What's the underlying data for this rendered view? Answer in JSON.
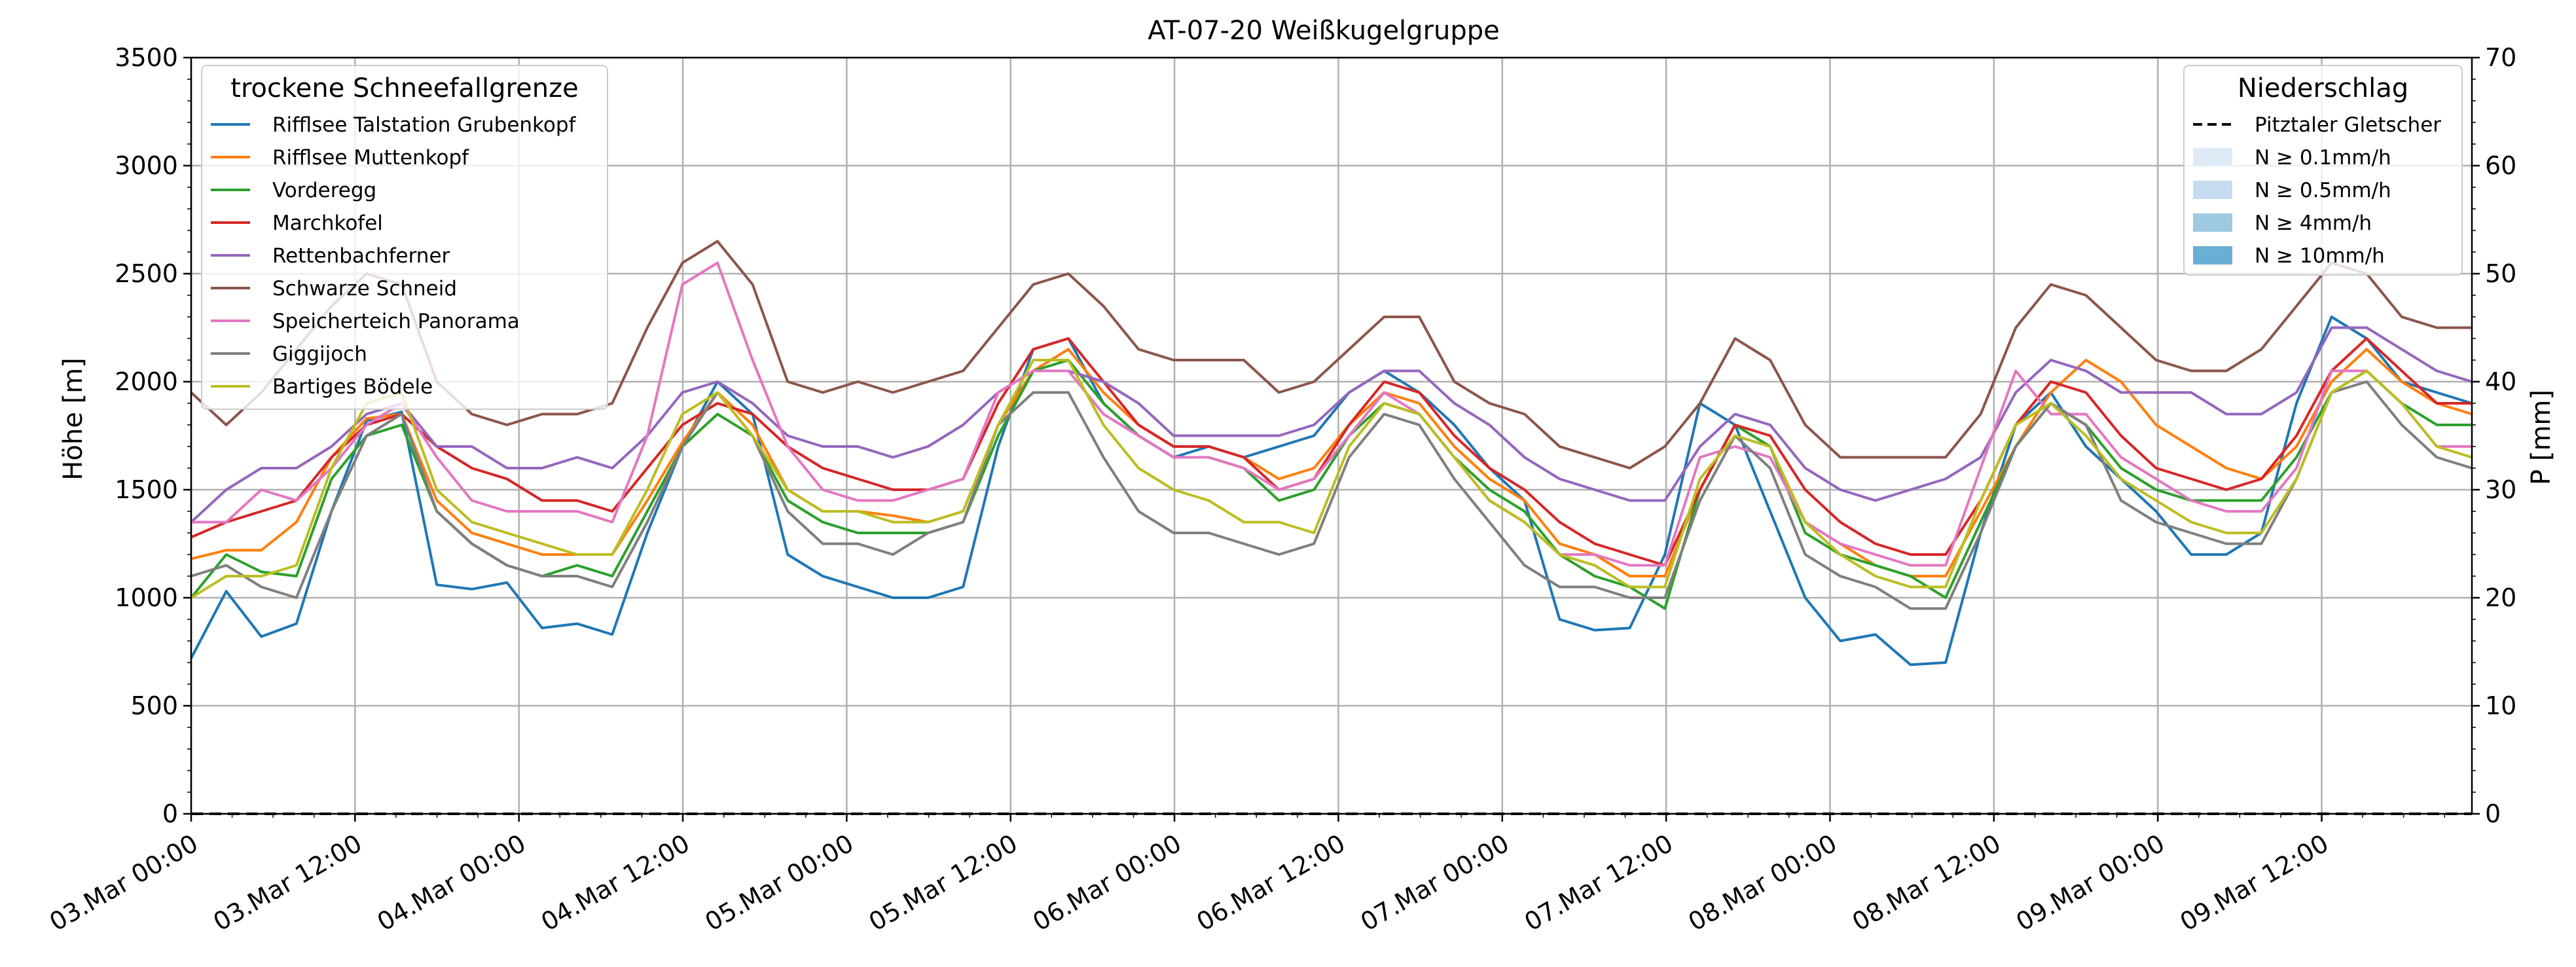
{
  "chart_data": {
    "type": "line",
    "title": "AT-07-20 Weißkugelgruppe",
    "ylabel": "Höhe [m]",
    "y2label": "P [mm]",
    "ylim": [
      0,
      3500
    ],
    "y2lim": [
      0,
      70
    ],
    "yticks": [
      0,
      500,
      1000,
      1500,
      2000,
      2500,
      3000,
      3500
    ],
    "y2ticks": [
      0,
      10,
      20,
      30,
      40,
      50,
      60,
      70
    ],
    "xrange_hours": [
      0,
      167
    ],
    "x_start": "03.Mar 00:00",
    "x_step_hours": 3,
    "xticks": [
      {
        "hour": 0,
        "label": "03.Mar 00:00"
      },
      {
        "hour": 12,
        "label": "03.Mar 12:00"
      },
      {
        "hour": 24,
        "label": "04.Mar 00:00"
      },
      {
        "hour": 36,
        "label": "04.Mar 12:00"
      },
      {
        "hour": 48,
        "label": "05.Mar 00:00"
      },
      {
        "hour": 60,
        "label": "05.Mar 12:00"
      },
      {
        "hour": 72,
        "label": "06.Mar 00:00"
      },
      {
        "hour": 84,
        "label": "06.Mar 12:00"
      },
      {
        "hour": 96,
        "label": "07.Mar 00:00"
      },
      {
        "hour": 108,
        "label": "07.Mar 12:00"
      },
      {
        "hour": 120,
        "label": "08.Mar 00:00"
      },
      {
        "hour": 132,
        "label": "08.Mar 12:00"
      },
      {
        "hour": 144,
        "label": "09.Mar 00:00"
      },
      {
        "hour": 156,
        "label": "09.Mar 12:00"
      }
    ],
    "grid": true,
    "legend_left": {
      "title": "trockene Schneefallgrenze",
      "placement": "top-left"
    },
    "legend_right": {
      "title": "Niederschlag",
      "placement": "top-right",
      "entries": [
        {
          "label": "Pitztaler Gletscher",
          "style": "dashed",
          "color": "#000000"
        },
        {
          "label": "N ≥ 0.1mm/h",
          "color": "#deebf7"
        },
        {
          "label": "N ≥ 0.5mm/h",
          "color": "#c6dbef"
        },
        {
          "label": "N ≥ 4mm/h",
          "color": "#9ecae1"
        },
        {
          "label": "N ≥ 10mm/h",
          "color": "#6baed6"
        }
      ]
    },
    "precipitation": {
      "station": "Pitztaler Gletscher",
      "values": [
        0,
        0,
        0,
        0,
        0,
        0,
        0,
        0,
        0,
        0,
        0,
        0,
        0,
        0,
        0
      ]
    },
    "series": [
      {
        "name": "Rifflsee Talstation Grubenkopf",
        "color": "#1f77b4",
        "values": [
          720,
          1030,
          820,
          880,
          1400,
          1820,
          1860,
          1060,
          1040,
          1070,
          860,
          880,
          830,
          1300,
          1700,
          2000,
          1850,
          1200,
          1100,
          1050,
          1000,
          1000,
          1050,
          1700,
          2150,
          2200,
          1900,
          1750,
          1650,
          1700,
          1650,
          1700,
          1750,
          1950,
          2050,
          1950,
          1800,
          1600,
          1450,
          900,
          850,
          860,
          1200,
          1900,
          1800,
          1400,
          1000,
          800,
          830,
          690,
          700,
          1300,
          1800,
          1950,
          1700,
          1550,
          1400,
          1200,
          1200,
          1300,
          1900,
          2300,
          2200,
          2000,
          1950,
          1900
        ]
      },
      {
        "name": "Rifflsee Muttenkopf",
        "color": "#ff7f0e",
        "values": [
          1180,
          1220,
          1220,
          1350,
          1650,
          1830,
          1850,
          1450,
          1300,
          1250,
          1200,
          1200,
          1200,
          1450,
          1720,
          1950,
          1800,
          1500,
          1400,
          1400,
          1380,
          1350,
          1400,
          1800,
          2050,
          2150,
          1950,
          1800,
          1700,
          1700,
          1650,
          1550,
          1600,
          1800,
          1950,
          1900,
          1700,
          1550,
          1450,
          1250,
          1200,
          1100,
          1100,
          1500,
          1800,
          1700,
          1350,
          1250,
          1150,
          1100,
          1100,
          1400,
          1700,
          1950,
          2100,
          2000,
          1800,
          1700,
          1600,
          1550,
          1700,
          2000,
          2150,
          2000,
          1900,
          1850
        ]
      },
      {
        "name": "Vorderegg",
        "color": "#2ca02c",
        "values": [
          1000,
          1200,
          1120,
          1100,
          1550,
          1750,
          1800,
          1400,
          1250,
          1150,
          1100,
          1150,
          1100,
          1400,
          1700,
          1850,
          1750,
          1450,
          1350,
          1300,
          1300,
          1300,
          1350,
          1750,
          2050,
          2100,
          1900,
          1750,
          1650,
          1650,
          1600,
          1450,
          1500,
          1750,
          1900,
          1850,
          1650,
          1500,
          1400,
          1200,
          1100,
          1050,
          950,
          1500,
          1800,
          1700,
          1300,
          1200,
          1150,
          1100,
          1000,
          1350,
          1700,
          1900,
          1800,
          1600,
          1500,
          1450,
          1450,
          1450,
          1650,
          1950,
          2050,
          1900,
          1800,
          1800
        ]
      },
      {
        "name": "Marchkofel",
        "color": "#d62728",
        "values": [
          1280,
          1350,
          1400,
          1450,
          1650,
          1800,
          1850,
          1700,
          1600,
          1550,
          1450,
          1450,
          1400,
          1600,
          1800,
          1900,
          1850,
          1700,
          1600,
          1550,
          1500,
          1500,
          1550,
          1900,
          2150,
          2200,
          2000,
          1800,
          1700,
          1700,
          1650,
          1500,
          1550,
          1800,
          2000,
          1950,
          1750,
          1600,
          1500,
          1350,
          1250,
          1200,
          1150,
          1500,
          1800,
          1750,
          1500,
          1350,
          1250,
          1200,
          1200,
          1450,
          1800,
          2000,
          1950,
          1750,
          1600,
          1550,
          1500,
          1550,
          1750,
          2050,
          2200,
          2050,
          1900,
          1900
        ]
      },
      {
        "name": "Rettenbachferner",
        "color": "#9467bd",
        "values": [
          1350,
          1500,
          1600,
          1600,
          1700,
          1850,
          1900,
          1700,
          1700,
          1600,
          1600,
          1650,
          1600,
          1750,
          1950,
          2000,
          1900,
          1750,
          1700,
          1700,
          1650,
          1700,
          1800,
          1950,
          2050,
          2050,
          2000,
          1900,
          1750,
          1750,
          1750,
          1750,
          1800,
          1950,
          2050,
          2050,
          1900,
          1800,
          1650,
          1550,
          1500,
          1450,
          1450,
          1700,
          1850,
          1800,
          1600,
          1500,
          1450,
          1500,
          1550,
          1650,
          1950,
          2100,
          2050,
          1950,
          1950,
          1950,
          1850,
          1850,
          1950,
          2250,
          2250,
          2150,
          2050,
          2000
        ]
      },
      {
        "name": "Schwarze Schneid",
        "color": "#8c564b",
        "values": [
          1950,
          1800,
          1950,
          2150,
          2350,
          2500,
          2450,
          2000,
          1850,
          1800,
          1850,
          1850,
          1900,
          2250,
          2550,
          2650,
          2450,
          2000,
          1950,
          2000,
          1950,
          2000,
          2050,
          2250,
          2450,
          2500,
          2350,
          2150,
          2100,
          2100,
          2100,
          1950,
          2000,
          2150,
          2300,
          2300,
          2000,
          1900,
          1850,
          1700,
          1650,
          1600,
          1700,
          1900,
          2200,
          2100,
          1800,
          1650,
          1650,
          1650,
          1650,
          1850,
          2250,
          2450,
          2400,
          2250,
          2100,
          2050,
          2050,
          2150,
          2350,
          2550,
          2500,
          2300,
          2250,
          2250
        ]
      },
      {
        "name": "Speicherteich Panorama",
        "color": "#e377c2",
        "values": [
          1350,
          1350,
          1500,
          1450,
          1600,
          1800,
          1900,
          1650,
          1450,
          1400,
          1400,
          1400,
          1350,
          1750,
          2450,
          2550,
          2100,
          1700,
          1500,
          1450,
          1450,
          1500,
          1550,
          1950,
          2050,
          2050,
          1850,
          1750,
          1650,
          1650,
          1600,
          1500,
          1550,
          1750,
          1950,
          1850,
          1650,
          1450,
          1350,
          1200,
          1200,
          1150,
          1150,
          1650,
          1700,
          1650,
          1350,
          1250,
          1200,
          1150,
          1150,
          1600,
          2050,
          1850,
          1850,
          1650,
          1550,
          1450,
          1400,
          1400,
          1600,
          2050,
          2050,
          1900,
          1700,
          1700
        ]
      },
      {
        "name": "Giggijoch",
        "color": "#7f7f7f",
        "values": [
          1100,
          1150,
          1050,
          1000,
          1400,
          1750,
          1850,
          1400,
          1250,
          1150,
          1100,
          1100,
          1050,
          1350,
          1700,
          1950,
          1750,
          1400,
          1250,
          1250,
          1200,
          1300,
          1350,
          1800,
          1950,
          1950,
          1650,
          1400,
          1300,
          1300,
          1250,
          1200,
          1250,
          1650,
          1850,
          1800,
          1550,
          1350,
          1150,
          1050,
          1050,
          1000,
          1000,
          1450,
          1750,
          1600,
          1200,
          1100,
          1050,
          950,
          950,
          1300,
          1700,
          1900,
          1800,
          1450,
          1350,
          1300,
          1250,
          1250,
          1550,
          1950,
          2000,
          1800,
          1650,
          1600
        ]
      },
      {
        "name": "Bartiges Bödele",
        "color": "#bcbd22",
        "values": [
          1000,
          1100,
          1100,
          1150,
          1600,
          1900,
          1950,
          1500,
          1350,
          1300,
          1250,
          1200,
          1200,
          1500,
          1850,
          1950,
          1750,
          1500,
          1400,
          1400,
          1350,
          1350,
          1400,
          1800,
          2100,
          2100,
          1800,
          1600,
          1500,
          1450,
          1350,
          1350,
          1300,
          1700,
          1900,
          1850,
          1650,
          1450,
          1350,
          1200,
          1150,
          1050,
          1050,
          1550,
          1750,
          1700,
          1350,
          1200,
          1100,
          1050,
          1050,
          1450,
          1800,
          1900,
          1750,
          1550,
          1450,
          1350,
          1300,
          1300,
          1550,
          1950,
          2050,
          1900,
          1700,
          1650
        ]
      }
    ]
  }
}
